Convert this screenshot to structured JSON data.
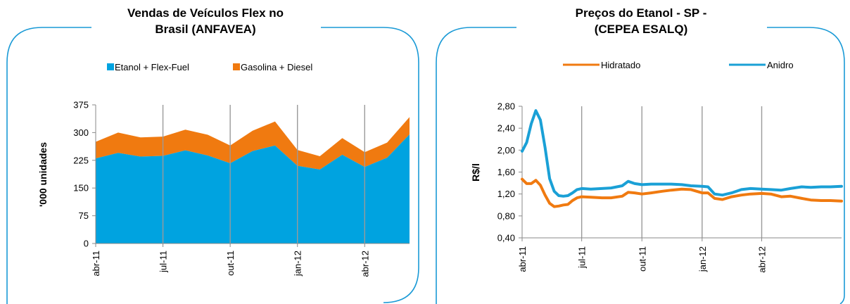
{
  "chart_data": [
    {
      "type": "area",
      "stacked": true,
      "title_lines": [
        "Vendas de Veículos Flex no",
        "Brasil (ANFAVEA)"
      ],
      "ylabel": "'000 unidades",
      "ylim": [
        0,
        375
      ],
      "yticks": [
        0,
        75,
        150,
        225,
        300,
        375
      ],
      "ytick_labels": [
        "0",
        "75",
        "150",
        "225",
        "300",
        "375"
      ],
      "x": [
        "2011-04",
        "2011-05",
        "2011-06",
        "2011-07",
        "2011-08",
        "2011-09",
        "2011-10",
        "2011-11",
        "2011-12",
        "2012-01",
        "2012-02",
        "2012-03",
        "2012-04",
        "2012-05",
        "2012-06"
      ],
      "xtick_labels": [
        {
          "label": "abr-11",
          "x": "2011-04"
        },
        {
          "label": "jul-11",
          "x": "2011-07"
        },
        {
          "label": "out-11",
          "x": "2011-10"
        },
        {
          "label": "jan-12",
          "x": "2012-01"
        },
        {
          "label": "abr-12",
          "x": "2012-04"
        }
      ],
      "grid": "vertical",
      "legend": "top",
      "series": [
        {
          "name": "Etanol + Flex-Fuel",
          "color": "#00a3e0",
          "values": [
            230,
            245,
            235,
            237,
            252,
            238,
            217,
            250,
            265,
            210,
            200,
            240,
            207,
            232,
            295
          ]
        },
        {
          "name": "Gasolina + Diesel",
          "color": "#f07a10",
          "values": [
            45,
            55,
            52,
            52,
            56,
            56,
            48,
            55,
            65,
            43,
            36,
            45,
            40,
            41,
            47
          ]
        }
      ]
    },
    {
      "type": "line",
      "title_lines": [
        "Preços do Etanol - SP -",
        "(CEPEA ESALQ)"
      ],
      "ylabel": "R$/l",
      "ylim": [
        0.4,
        2.8
      ],
      "yticks": [
        0.4,
        0.8,
        1.2,
        1.6,
        2.0,
        2.4,
        2.8
      ],
      "ytick_labels": [
        "0,40",
        "0,80",
        "1,20",
        "1,60",
        "2,00",
        "2,40",
        "2,80"
      ],
      "xlim": [
        "2011-04-01",
        "2012-08-01"
      ],
      "xtick_labels": [
        {
          "label": "abr-11",
          "x": "2011-04-01"
        },
        {
          "label": "jul-11",
          "x": "2011-07-01"
        },
        {
          "label": "out-11",
          "x": "2011-10-01"
        },
        {
          "label": "jan-12",
          "x": "2012-01-01"
        },
        {
          "label": "abr-12",
          "x": "2012-04-01"
        }
      ],
      "grid": "vertical",
      "legend": "top",
      "series": [
        {
          "name": "Hidratado",
          "color": "#f07a10",
          "points": [
            [
              "2011-04-01",
              1.47
            ],
            [
              "2011-04-08",
              1.39
            ],
            [
              "2011-04-15",
              1.39
            ],
            [
              "2011-04-22",
              1.45
            ],
            [
              "2011-04-29",
              1.36
            ],
            [
              "2011-05-06",
              1.18
            ],
            [
              "2011-05-13",
              1.03
            ],
            [
              "2011-05-20",
              0.97
            ],
            [
              "2011-05-27",
              0.98
            ],
            [
              "2011-06-03",
              1.0
            ],
            [
              "2011-06-10",
              1.01
            ],
            [
              "2011-06-17",
              1.08
            ],
            [
              "2011-06-24",
              1.13
            ],
            [
              "2011-07-01",
              1.15
            ],
            [
              "2011-07-15",
              1.14
            ],
            [
              "2011-08-01",
              1.13
            ],
            [
              "2011-08-15",
              1.13
            ],
            [
              "2011-09-01",
              1.16
            ],
            [
              "2011-09-10",
              1.23
            ],
            [
              "2011-09-20",
              1.22
            ],
            [
              "2011-10-01",
              1.2
            ],
            [
              "2011-10-15",
              1.22
            ],
            [
              "2011-11-01",
              1.25
            ],
            [
              "2011-11-15",
              1.27
            ],
            [
              "2011-12-01",
              1.29
            ],
            [
              "2011-12-15",
              1.28
            ],
            [
              "2012-01-01",
              1.22
            ],
            [
              "2012-01-10",
              1.22
            ],
            [
              "2012-01-20",
              1.12
            ],
            [
              "2012-02-01",
              1.1
            ],
            [
              "2012-02-15",
              1.15
            ],
            [
              "2012-03-01",
              1.18
            ],
            [
              "2012-03-15",
              1.2
            ],
            [
              "2012-04-01",
              1.21
            ],
            [
              "2012-04-15",
              1.2
            ],
            [
              "2012-05-01",
              1.15
            ],
            [
              "2012-05-15",
              1.16
            ],
            [
              "2012-06-01",
              1.12
            ],
            [
              "2012-06-15",
              1.09
            ],
            [
              "2012-07-01",
              1.08
            ],
            [
              "2012-07-15",
              1.08
            ],
            [
              "2012-08-01",
              1.07
            ]
          ]
        },
        {
          "name": "Anidro",
          "color": "#1aa0d6",
          "points": [
            [
              "2011-04-01",
              1.98
            ],
            [
              "2011-04-08",
              2.14
            ],
            [
              "2011-04-15",
              2.48
            ],
            [
              "2011-04-22",
              2.72
            ],
            [
              "2011-04-29",
              2.55
            ],
            [
              "2011-05-06",
              2.05
            ],
            [
              "2011-05-13",
              1.48
            ],
            [
              "2011-05-20",
              1.25
            ],
            [
              "2011-05-27",
              1.17
            ],
            [
              "2011-06-03",
              1.16
            ],
            [
              "2011-06-10",
              1.17
            ],
            [
              "2011-06-17",
              1.22
            ],
            [
              "2011-06-24",
              1.28
            ],
            [
              "2011-07-01",
              1.3
            ],
            [
              "2011-07-15",
              1.29
            ],
            [
              "2011-08-01",
              1.3
            ],
            [
              "2011-08-15",
              1.31
            ],
            [
              "2011-09-01",
              1.35
            ],
            [
              "2011-09-10",
              1.43
            ],
            [
              "2011-09-20",
              1.39
            ],
            [
              "2011-10-01",
              1.37
            ],
            [
              "2011-10-15",
              1.38
            ],
            [
              "2011-11-01",
              1.38
            ],
            [
              "2011-11-15",
              1.38
            ],
            [
              "2011-12-01",
              1.37
            ],
            [
              "2011-12-15",
              1.35
            ],
            [
              "2012-01-01",
              1.34
            ],
            [
              "2012-01-10",
              1.33
            ],
            [
              "2012-01-20",
              1.2
            ],
            [
              "2012-02-01",
              1.18
            ],
            [
              "2012-02-15",
              1.22
            ],
            [
              "2012-03-01",
              1.28
            ],
            [
              "2012-03-15",
              1.3
            ],
            [
              "2012-04-01",
              1.29
            ],
            [
              "2012-04-15",
              1.28
            ],
            [
              "2012-05-01",
              1.27
            ],
            [
              "2012-05-15",
              1.3
            ],
            [
              "2012-06-01",
              1.33
            ],
            [
              "2012-06-15",
              1.32
            ],
            [
              "2012-07-01",
              1.33
            ],
            [
              "2012-07-15",
              1.33
            ],
            [
              "2012-08-01",
              1.34
            ]
          ]
        }
      ]
    }
  ]
}
